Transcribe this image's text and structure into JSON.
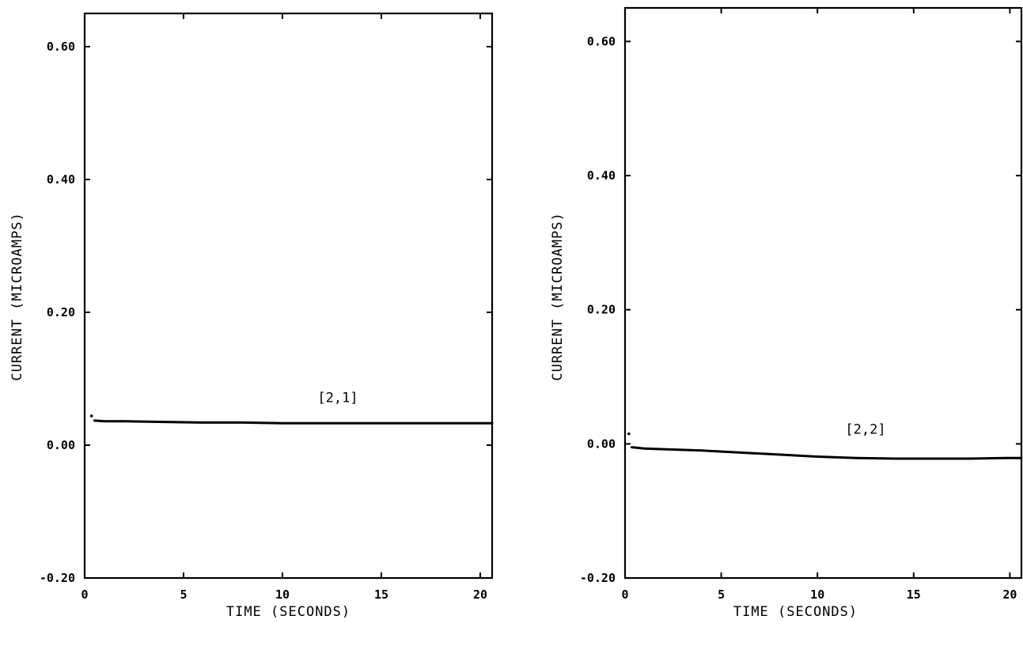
{
  "chart_data": [
    {
      "type": "line",
      "xlabel": "TIME (SECONDS)",
      "ylabel": "CURRENT (MICROAMPS)",
      "xlim": [
        0,
        20.6
      ],
      "ylim": [
        -0.2,
        0.65
      ],
      "xticks": [
        0,
        5,
        10,
        15,
        20
      ],
      "xtick_labels": [
        "0",
        "5",
        "10",
        "15",
        "20"
      ],
      "yticks": [
        -0.2,
        0.0,
        0.2,
        0.4,
        0.6
      ],
      "ytick_labels": [
        "-0.20",
        "0.00",
        "0.20",
        "0.40",
        "0.60"
      ],
      "annotation": {
        "text": "[2,1]",
        "x": 12.8,
        "y": 0.065
      },
      "series": [
        {
          "x": [
            0.35,
            0.5,
            1,
            2,
            4,
            6,
            8,
            10,
            12,
            14,
            16,
            18,
            20,
            20.6
          ],
          "y": [
            0.044,
            0.037,
            0.036,
            0.036,
            0.035,
            0.034,
            0.034,
            0.033,
            0.033,
            0.033,
            0.033,
            0.033,
            0.033,
            0.033
          ]
        }
      ],
      "grid": false
    },
    {
      "type": "line",
      "xlabel": "TIME (SECONDS)",
      "ylabel": "CURRENT (MICROAMPS)",
      "xlim": [
        0,
        20.6
      ],
      "ylim": [
        -0.2,
        0.65
      ],
      "xticks": [
        0,
        5,
        10,
        15,
        20
      ],
      "xtick_labels": [
        "0",
        "5",
        "10",
        "15",
        "20"
      ],
      "yticks": [
        -0.2,
        0.0,
        0.2,
        0.4,
        0.6
      ],
      "ytick_labels": [
        "-0.20",
        "0.00",
        "0.20",
        "0.40",
        "0.60"
      ],
      "annotation": {
        "text": "[2,2]",
        "x": 12.5,
        "y": 0.015
      },
      "series": [
        {
          "x": [
            0.2,
            0.35,
            1,
            2,
            4,
            6,
            8,
            10,
            12,
            14,
            16,
            18,
            20,
            20.6
          ],
          "y": [
            0.015,
            -0.005,
            -0.007,
            -0.008,
            -0.01,
            -0.013,
            -0.016,
            -0.019,
            -0.021,
            -0.022,
            -0.022,
            -0.022,
            -0.021,
            -0.021
          ]
        }
      ],
      "grid": false
    }
  ]
}
